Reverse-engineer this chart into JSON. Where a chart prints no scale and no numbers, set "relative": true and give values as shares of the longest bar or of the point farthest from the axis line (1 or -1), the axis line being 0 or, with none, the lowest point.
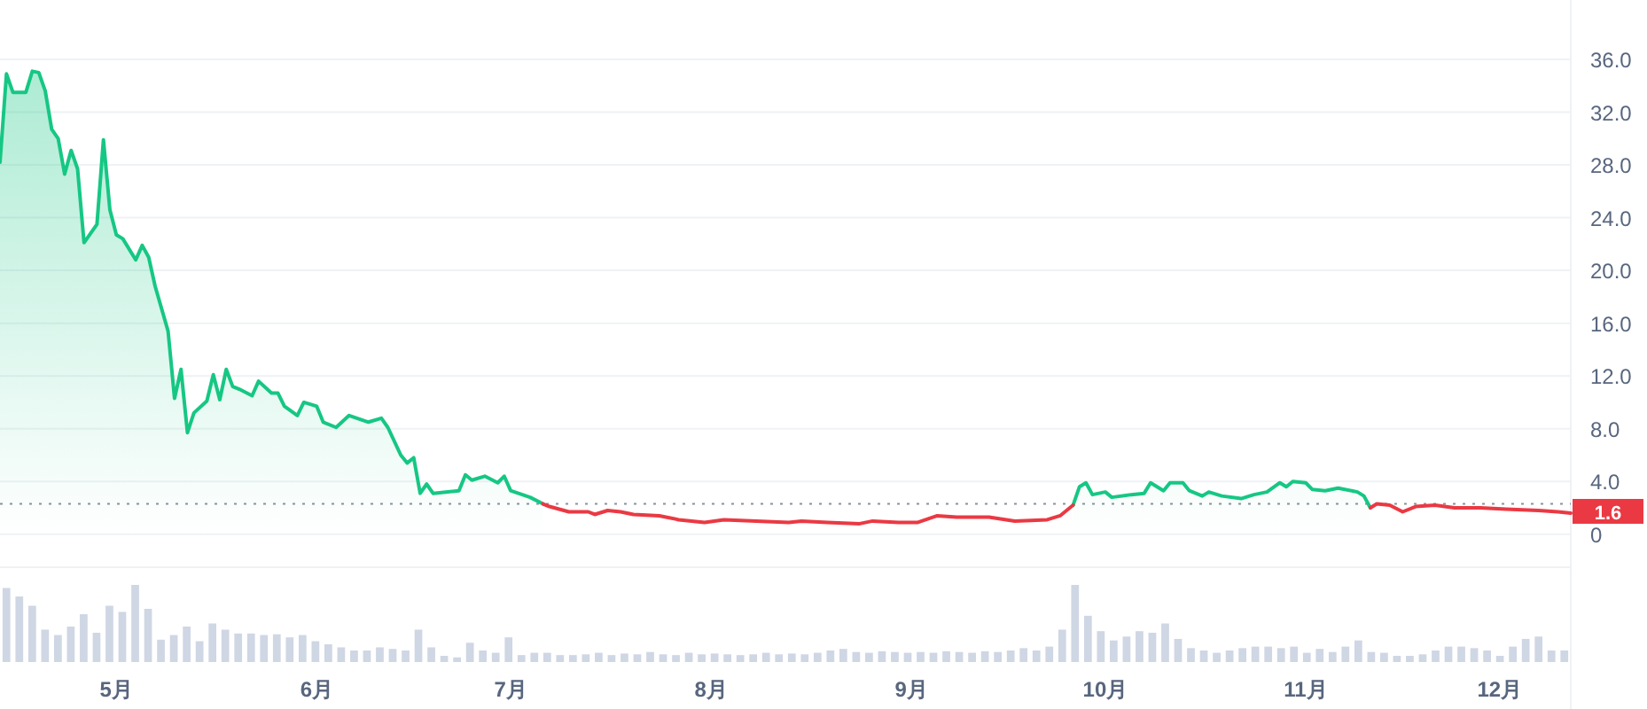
{
  "chart_data": [
    {
      "type": "line",
      "x": [
        "--04-13",
        "--04-14",
        "--04-15",
        "--04-17",
        "--04-18",
        "--04-19",
        "--04-20",
        "--04-21",
        "--04-22",
        "--04-23",
        "--04-24",
        "--04-25",
        "--04-26",
        "--04-28",
        "--04-29",
        "--04-30",
        "--05-01",
        "--05-02",
        "--05-04",
        "--05-05",
        "--05-06",
        "--05-07",
        "--05-09",
        "--05-10",
        "--05-11",
        "--05-12",
        "--05-13",
        "--05-15",
        "--05-16",
        "--05-17",
        "--05-18",
        "--05-19",
        "--05-20",
        "--05-22",
        "--05-23",
        "--05-25",
        "--05-26",
        "--05-27",
        "--05-29",
        "--05-30",
        "--06-01",
        "--06-02",
        "--06-04",
        "--06-06",
        "--06-09",
        "--06-11",
        "--06-12",
        "--06-14",
        "--06-15",
        "--06-16",
        "--06-17",
        "--06-18",
        "--06-19",
        "--06-23",
        "--06-24",
        "--06-25",
        "--06-27",
        "--06-29",
        "--06-30",
        "--07-01",
        "--07-04",
        "--07-06",
        "--07-07",
        "--07-10",
        "--07-13",
        "--07-14",
        "--07-16",
        "--07-18",
        "--07-20",
        "--07-24",
        "--07-27",
        "--07-31",
        "--08-03",
        "--08-08",
        "--08-13",
        "--08-15",
        "--08-19",
        "--08-24",
        "--08-26",
        "--08-30",
        "--09-02",
        "--09-05",
        "--09-08",
        "--09-13",
        "--09-17",
        "--09-22",
        "--09-24",
        "--09-26",
        "--09-27",
        "--09-28",
        "--09-29",
        "--10-01",
        "--10-02",
        "--10-05",
        "--10-07",
        "--10-08",
        "--10-10",
        "--10-11",
        "--10-13",
        "--10-14",
        "--10-16",
        "--10-17",
        "--10-19",
        "--10-22",
        "--10-24",
        "--10-26",
        "--10-28",
        "--10-29",
        "--10-30",
        "--11-01",
        "--11-02",
        "--11-04",
        "--11-06",
        "--11-09",
        "--11-10",
        "--11-11",
        "--11-12",
        "--11-14",
        "--11-16",
        "--11-18",
        "--11-21",
        "--11-24",
        "--11-28",
        "--12-02",
        "--12-07",
        "--12-10",
        "--12-12"
      ],
      "series": [
        {
          "type": "area",
          "color": "#16c784",
          "values": [
            28.2,
            34.9,
            33.5,
            33.5,
            35.1,
            35.0,
            33.6,
            30.7,
            30.0,
            27.3,
            29.1,
            27.7,
            22.1,
            23.5,
            29.9,
            24.6,
            22.7,
            22.4,
            20.8,
            21.9,
            21.0,
            18.8,
            15.4,
            10.3,
            12.5,
            7.7,
            9.2,
            10.1,
            12.1,
            10.2,
            12.5,
            11.2,
            11.0,
            10.5,
            11.6,
            10.7,
            10.7,
            9.7,
            9.0,
            10.0,
            9.7,
            8.5,
            8.1,
            9.0,
            8.5,
            8.8,
            8.1,
            6.0,
            5.4,
            5.8,
            3.1,
            3.8,
            3.1,
            3.3,
            4.5,
            4.1,
            4.4,
            3.9,
            4.4,
            3.3,
            2.8,
            2.3,
            null,
            null,
            null,
            null,
            null,
            null,
            null,
            null,
            null,
            null,
            null,
            null,
            null,
            null,
            null,
            null,
            null,
            null,
            null,
            null,
            null,
            null,
            null,
            null,
            null,
            2.2,
            3.6,
            3.9,
            3.0,
            3.2,
            2.8,
            3.0,
            3.1,
            3.9,
            3.3,
            3.9,
            3.9,
            3.3,
            2.9,
            3.2,
            2.9,
            2.7,
            3.0,
            3.2,
            3.9,
            3.6,
            4.0,
            3.9,
            3.4,
            3.3,
            3.5,
            3.2,
            2.9,
            2.0,
            null,
            null,
            null,
            null,
            null,
            null,
            null,
            null,
            null,
            null,
            null
          ]
        },
        {
          "type": "line",
          "color": "#ea3943",
          "values": [
            null,
            null,
            null,
            null,
            null,
            null,
            null,
            null,
            null,
            null,
            null,
            null,
            null,
            null,
            null,
            null,
            null,
            null,
            null,
            null,
            null,
            null,
            null,
            null,
            null,
            null,
            null,
            null,
            null,
            null,
            null,
            null,
            null,
            null,
            null,
            null,
            null,
            null,
            null,
            null,
            null,
            null,
            null,
            null,
            null,
            null,
            null,
            null,
            null,
            null,
            null,
            null,
            null,
            null,
            null,
            null,
            null,
            null,
            null,
            null,
            null,
            2.3,
            2.1,
            1.7,
            1.7,
            1.5,
            1.8,
            1.7,
            1.5,
            1.4,
            1.1,
            0.9,
            1.1,
            1.0,
            0.9,
            1.0,
            0.9,
            0.8,
            1.0,
            0.9,
            0.9,
            1.4,
            1.3,
            1.3,
            1.0,
            1.1,
            1.4,
            2.2,
            null,
            null,
            null,
            null,
            null,
            null,
            null,
            null,
            null,
            null,
            null,
            null,
            null,
            null,
            null,
            null,
            null,
            null,
            null,
            null,
            null,
            null,
            null,
            null,
            null,
            null,
            null,
            2.0,
            2.3,
            2.2,
            1.7,
            2.1,
            2.2,
            2.0,
            2.0,
            1.9,
            1.8,
            1.7,
            1.6
          ]
        }
      ],
      "xlim": [
        "--04-13",
        "--12-12"
      ],
      "xticks": [
        {
          "value": "--05-01",
          "label": "5月"
        },
        {
          "value": "--06-01",
          "label": "6月"
        },
        {
          "value": "--07-01",
          "label": "7月"
        },
        {
          "value": "--08-01",
          "label": "8月"
        },
        {
          "value": "--09-01",
          "label": "9月"
        },
        {
          "value": "--10-01",
          "label": "10月"
        },
        {
          "value": "--11-01",
          "label": "11月"
        },
        {
          "value": "--12-01",
          "label": "12月"
        }
      ],
      "ylim": [
        -2.5,
        40.5
      ],
      "yticks": [
        0,
        {
          "value": 4,
          "label": "4.0"
        },
        {
          "value": 8,
          "label": "8.0"
        },
        {
          "value": 12,
          "label": "12.0"
        },
        {
          "value": 16,
          "label": "16.0"
        },
        {
          "value": 20,
          "label": "20.0"
        },
        {
          "value": 24,
          "label": "24.0"
        },
        {
          "value": 28,
          "label": "28.0"
        },
        {
          "value": 32,
          "label": "32.0"
        },
        {
          "value": 36,
          "label": "36.0"
        }
      ],
      "grid": "y",
      "ref_lines": [
        {
          "axis": "y",
          "value": 2.3,
          "color": "#8a919e",
          "line_style": "dotted"
        }
      ],
      "annotations": [
        {
          "text": "1.6",
          "x": "--12-12",
          "y": 1.6
        }
      ]
    },
    {
      "type": "bar",
      "relative": true,
      "color": "#cfd6e4",
      "categories": [
        null,
        null,
        null,
        null,
        null,
        null,
        null,
        null,
        null,
        null,
        null,
        null,
        null,
        null,
        null,
        null,
        null,
        null,
        null,
        null,
        null,
        null,
        null,
        null,
        null,
        null,
        null,
        null,
        null,
        null,
        null,
        null,
        null,
        null,
        null,
        null,
        null,
        null,
        null,
        null,
        null,
        null,
        null,
        null,
        null,
        null,
        null,
        null,
        null,
        null,
        null,
        null,
        null,
        null,
        null,
        null,
        null,
        null,
        null,
        null,
        null,
        null,
        null,
        null,
        null,
        null,
        null,
        null,
        null,
        null,
        null,
        null,
        null,
        null,
        null,
        null,
        null,
        null,
        null,
        null,
        null,
        null,
        null,
        null,
        null,
        null,
        null,
        null,
        null,
        null,
        null,
        null,
        null,
        null,
        null,
        null,
        null,
        null,
        null,
        null,
        null,
        null,
        null,
        null,
        null,
        null,
        null,
        null,
        null,
        null,
        null,
        null,
        null,
        null,
        null,
        null,
        null,
        null,
        null,
        null,
        null,
        null
      ],
      "values": [
        0.96,
        0.85,
        0.73,
        0.42,
        0.35,
        0.46,
        0.62,
        0.38,
        0.73,
        0.65,
        1.0,
        0.69,
        0.29,
        0.35,
        0.46,
        0.27,
        0.5,
        0.42,
        0.37,
        0.37,
        0.35,
        0.36,
        0.32,
        0.35,
        0.27,
        0.23,
        0.19,
        0.15,
        0.15,
        0.19,
        0.17,
        0.15,
        0.42,
        0.19,
        0.08,
        0.06,
        0.25,
        0.15,
        0.12,
        0.32,
        0.09,
        0.12,
        0.12,
        0.09,
        0.09,
        0.1,
        0.12,
        0.09,
        0.11,
        0.1,
        0.13,
        0.1,
        0.09,
        0.12,
        0.1,
        0.11,
        0.1,
        0.09,
        0.1,
        0.12,
        0.1,
        0.11,
        0.1,
        0.12,
        0.15,
        0.17,
        0.13,
        0.12,
        0.14,
        0.13,
        0.12,
        0.13,
        0.12,
        0.14,
        0.13,
        0.12,
        0.14,
        0.13,
        0.15,
        0.18,
        0.15,
        0.2,
        0.42,
        1.0,
        0.6,
        0.4,
        0.28,
        0.33,
        0.4,
        0.38,
        0.5,
        0.3,
        0.18,
        0.15,
        0.12,
        0.15,
        0.18,
        0.2,
        0.2,
        0.18,
        0.2,
        0.12,
        0.17,
        0.13,
        0.2,
        0.28,
        0.13,
        0.12,
        0.08,
        0.08,
        0.1,
        0.15,
        0.2,
        0.2,
        0.18,
        0.15,
        0.08,
        0.2,
        0.3,
        0.33,
        0.15,
        0.15
      ]
    }
  ]
}
